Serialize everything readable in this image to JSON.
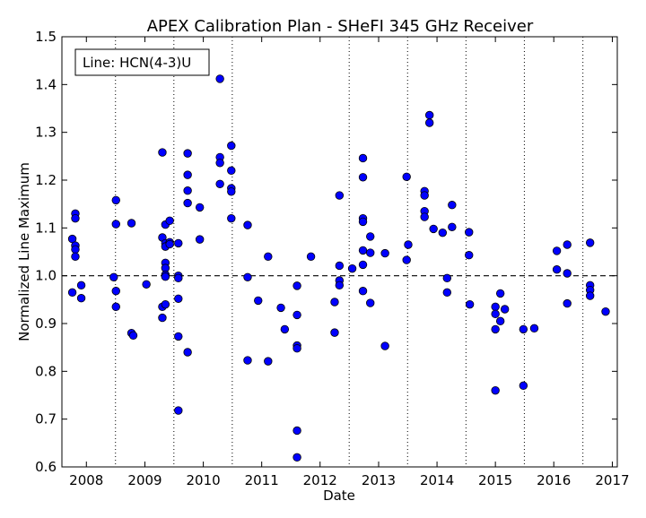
{
  "chart_data": {
    "type": "scatter",
    "title": "APEX Calibration Plan - SHeFI 345 GHz Receiver",
    "xlabel": "Date",
    "ylabel": "Normalized Line Maximum",
    "annotation": "Line: HCN(4-3)U",
    "xlim": [
      "2007-08-01",
      "2017-02-01"
    ],
    "ylim": [
      0.6,
      1.5
    ],
    "x_ticks": [
      "2008",
      "2009",
      "2010",
      "2011",
      "2012",
      "2013",
      "2014",
      "2015",
      "2016",
      "2017"
    ],
    "y_ticks": [
      "0.6",
      "0.7",
      "0.8",
      "0.9",
      "1.0",
      "1.1",
      "1.2",
      "1.3",
      "1.4",
      "1.5"
    ],
    "vertical_dotted_lines": [
      "2008-07-01",
      "2009-07-01",
      "2010-07-01",
      "2012-07-01",
      "2013-07-01",
      "2014-07-01",
      "2015-07-01",
      "2016-07-01"
    ],
    "reference_line": 1.0,
    "marker_color": "#0000ff",
    "marker_edge_color": "#000000",
    "points": [
      {
        "x": "2007-10-05",
        "y": 1.077
      },
      {
        "x": "2007-10-05",
        "y": 0.965
      },
      {
        "x": "2007-10-24",
        "y": 1.13
      },
      {
        "x": "2007-10-24",
        "y": 1.12
      },
      {
        "x": "2007-10-24",
        "y": 1.063
      },
      {
        "x": "2007-10-24",
        "y": 1.055
      },
      {
        "x": "2007-10-24",
        "y": 1.04
      },
      {
        "x": "2007-11-30",
        "y": 0.98
      },
      {
        "x": "2007-11-30",
        "y": 0.953
      },
      {
        "x": "2008-06-20",
        "y": 0.997
      },
      {
        "x": "2008-07-04",
        "y": 1.158
      },
      {
        "x": "2008-07-04",
        "y": 1.108
      },
      {
        "x": "2008-07-04",
        "y": 0.968
      },
      {
        "x": "2008-07-04",
        "y": 0.935
      },
      {
        "x": "2008-10-09",
        "y": 1.11
      },
      {
        "x": "2008-10-09",
        "y": 0.88
      },
      {
        "x": "2008-10-20",
        "y": 0.875
      },
      {
        "x": "2009-01-10",
        "y": 0.982
      },
      {
        "x": "2009-04-20",
        "y": 1.258
      },
      {
        "x": "2009-04-20",
        "y": 1.08
      },
      {
        "x": "2009-04-20",
        "y": 0.935
      },
      {
        "x": "2009-04-20",
        "y": 0.912
      },
      {
        "x": "2009-05-09",
        "y": 1.107
      },
      {
        "x": "2009-05-09",
        "y": 1.068
      },
      {
        "x": "2009-05-09",
        "y": 1.061
      },
      {
        "x": "2009-05-09",
        "y": 1.027
      },
      {
        "x": "2009-05-09",
        "y": 1.016
      },
      {
        "x": "2009-05-09",
        "y": 1.002
      },
      {
        "x": "2009-05-09",
        "y": 0.998
      },
      {
        "x": "2009-05-09",
        "y": 0.94
      },
      {
        "x": "2009-06-05",
        "y": 1.115
      },
      {
        "x": "2009-06-05",
        "y": 1.07
      },
      {
        "x": "2009-06-05",
        "y": 1.066
      },
      {
        "x": "2009-07-29",
        "y": 1.068
      },
      {
        "x": "2009-07-29",
        "y": 1.0
      },
      {
        "x": "2009-07-29",
        "y": 0.995
      },
      {
        "x": "2009-07-29",
        "y": 0.952
      },
      {
        "x": "2009-07-29",
        "y": 0.873
      },
      {
        "x": "2009-07-29",
        "y": 0.718
      },
      {
        "x": "2009-09-25",
        "y": 1.256
      },
      {
        "x": "2009-09-25",
        "y": 1.211
      },
      {
        "x": "2009-09-25",
        "y": 1.178
      },
      {
        "x": "2009-09-25",
        "y": 1.152
      },
      {
        "x": "2009-09-25",
        "y": 0.84
      },
      {
        "x": "2009-12-10",
        "y": 1.143
      },
      {
        "x": "2009-12-10",
        "y": 1.076
      },
      {
        "x": "2010-04-15",
        "y": 1.412
      },
      {
        "x": "2010-04-15",
        "y": 1.248
      },
      {
        "x": "2010-04-15",
        "y": 1.236
      },
      {
        "x": "2010-04-15",
        "y": 1.192
      },
      {
        "x": "2010-06-25",
        "y": 1.272
      },
      {
        "x": "2010-06-25",
        "y": 1.22
      },
      {
        "x": "2010-06-25",
        "y": 1.183
      },
      {
        "x": "2010-06-25",
        "y": 1.176
      },
      {
        "x": "2010-06-25",
        "y": 1.12
      },
      {
        "x": "2010-10-05",
        "y": 1.106
      },
      {
        "x": "2010-10-05",
        "y": 0.997
      },
      {
        "x": "2010-10-05",
        "y": 0.823
      },
      {
        "x": "2010-12-10",
        "y": 0.948
      },
      {
        "x": "2011-02-10",
        "y": 1.04
      },
      {
        "x": "2011-02-10",
        "y": 0.821
      },
      {
        "x": "2011-05-01",
        "y": 0.933
      },
      {
        "x": "2011-05-25",
        "y": 0.888
      },
      {
        "x": "2011-08-10",
        "y": 0.979
      },
      {
        "x": "2011-08-10",
        "y": 0.918
      },
      {
        "x": "2011-08-10",
        "y": 0.854
      },
      {
        "x": "2011-08-10",
        "y": 0.848
      },
      {
        "x": "2011-08-10",
        "y": 0.676
      },
      {
        "x": "2011-08-10",
        "y": 0.62
      },
      {
        "x": "2011-11-05",
        "y": 1.04
      },
      {
        "x": "2012-04-01",
        "y": 0.945
      },
      {
        "x": "2012-04-01",
        "y": 0.881
      },
      {
        "x": "2012-05-01",
        "y": 1.168
      },
      {
        "x": "2012-05-01",
        "y": 1.021
      },
      {
        "x": "2012-05-01",
        "y": 0.99
      },
      {
        "x": "2012-05-01",
        "y": 0.98
      },
      {
        "x": "2012-07-20",
        "y": 1.015
      },
      {
        "x": "2012-09-25",
        "y": 1.246
      },
      {
        "x": "2012-09-25",
        "y": 1.206
      },
      {
        "x": "2012-09-25",
        "y": 1.12
      },
      {
        "x": "2012-09-25",
        "y": 1.113
      },
      {
        "x": "2012-09-25",
        "y": 1.053
      },
      {
        "x": "2012-09-25",
        "y": 1.023
      },
      {
        "x": "2012-09-25",
        "y": 0.968
      },
      {
        "x": "2012-11-10",
        "y": 1.082
      },
      {
        "x": "2012-11-10",
        "y": 1.048
      },
      {
        "x": "2012-11-10",
        "y": 0.943
      },
      {
        "x": "2013-02-10",
        "y": 1.047
      },
      {
        "x": "2013-02-10",
        "y": 0.853
      },
      {
        "x": "2013-06-25",
        "y": 1.207
      },
      {
        "x": "2013-06-25",
        "y": 1.033
      },
      {
        "x": "2013-07-05",
        "y": 1.065
      },
      {
        "x": "2013-10-15",
        "y": 1.177
      },
      {
        "x": "2013-10-15",
        "y": 1.168
      },
      {
        "x": "2013-10-15",
        "y": 1.135
      },
      {
        "x": "2013-10-15",
        "y": 1.123
      },
      {
        "x": "2013-11-15",
        "y": 1.336
      },
      {
        "x": "2013-11-15",
        "y": 1.32
      },
      {
        "x": "2013-12-10",
        "y": 1.098
      },
      {
        "x": "2014-02-05",
        "y": 1.09
      },
      {
        "x": "2014-03-05",
        "y": 0.995
      },
      {
        "x": "2014-03-05",
        "y": 0.965
      },
      {
        "x": "2014-04-05",
        "y": 1.148
      },
      {
        "x": "2014-04-05",
        "y": 1.102
      },
      {
        "x": "2014-07-20",
        "y": 1.091
      },
      {
        "x": "2014-07-20",
        "y": 1.043
      },
      {
        "x": "2014-07-25",
        "y": 0.94
      },
      {
        "x": "2015-01-01",
        "y": 0.935
      },
      {
        "x": "2015-01-01",
        "y": 0.92
      },
      {
        "x": "2015-01-01",
        "y": 0.888
      },
      {
        "x": "2015-01-01",
        "y": 0.76
      },
      {
        "x": "2015-02-01",
        "y": 0.963
      },
      {
        "x": "2015-02-01",
        "y": 0.905
      },
      {
        "x": "2015-03-01",
        "y": 0.93
      },
      {
        "x": "2015-06-25",
        "y": 0.888
      },
      {
        "x": "2015-06-25",
        "y": 0.77
      },
      {
        "x": "2015-09-01",
        "y": 0.89
      },
      {
        "x": "2016-01-20",
        "y": 1.052
      },
      {
        "x": "2016-01-20",
        "y": 1.013
      },
      {
        "x": "2016-03-25",
        "y": 1.065
      },
      {
        "x": "2016-03-25",
        "y": 1.005
      },
      {
        "x": "2016-03-25",
        "y": 0.942
      },
      {
        "x": "2016-08-15",
        "y": 1.069
      },
      {
        "x": "2016-08-15",
        "y": 0.98
      },
      {
        "x": "2016-08-15",
        "y": 0.97
      },
      {
        "x": "2016-08-15",
        "y": 0.958
      },
      {
        "x": "2016-11-20",
        "y": 0.925
      }
    ]
  }
}
